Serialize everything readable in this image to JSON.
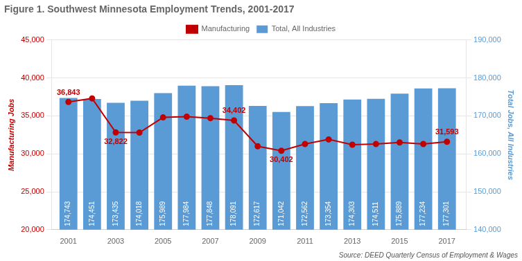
{
  "chart_data": {
    "type": "bar",
    "title": "Figure 1. Southwest Minnesota Employment Trends, 2001-2017",
    "source": "Source: DEED Quarterly Census of Employment & Wages",
    "x": [
      2001,
      2002,
      2003,
      2004,
      2005,
      2006,
      2007,
      2008,
      2009,
      2010,
      2011,
      2012,
      2013,
      2014,
      2015,
      2016,
      2017
    ],
    "xlim": [
      2000.3,
      2017.8
    ],
    "xticks": [
      2001,
      2003,
      2005,
      2007,
      2009,
      2011,
      2013,
      2015,
      2017
    ],
    "y_label": "Manufacturing Jobs",
    "y2_label": "Total Jobs, All Industries",
    "ylim": [
      20000,
      45000
    ],
    "yticks": [
      {
        "value": 20000,
        "label": "20,000"
      },
      {
        "value": 25000,
        "label": "25,000"
      },
      {
        "value": 30000,
        "label": "30,000"
      },
      {
        "value": 35000,
        "label": "35,000"
      },
      {
        "value": 40000,
        "label": "40,000"
      },
      {
        "value": 45000,
        "label": "45,000"
      }
    ],
    "y2lim": [
      140000,
      190000
    ],
    "y2ticks": [
      {
        "value": 140000,
        "label": "140,000"
      },
      {
        "value": 150000,
        "label": "150,000"
      },
      {
        "value": 160000,
        "label": "160,000"
      },
      {
        "value": 170000,
        "label": "170,000"
      },
      {
        "value": 180000,
        "label": "180,000"
      },
      {
        "value": 190000,
        "label": "190,000"
      }
    ],
    "grid": true,
    "legend": "top",
    "series": [
      {
        "name": "Total, All Industries",
        "type": "bar",
        "color": "#5B9BD5",
        "axis": "y2",
        "data_labels": true,
        "values": [
          174743,
          174451,
          173435,
          174018,
          175989,
          177984,
          177848,
          178091,
          172617,
          171042,
          172562,
          173354,
          174303,
          174511,
          175889,
          177234,
          177301
        ],
        "value_labels": [
          "174,743",
          "174,451",
          "173,435",
          "174,018",
          "175,989",
          "177,984",
          "177,848",
          "178,091",
          "172,617",
          "171,042",
          "172,562",
          "173,354",
          "174,303",
          "174,511",
          "175,889",
          "177,234",
          "177,301"
        ]
      },
      {
        "name": "Manufacturing",
        "type": "line",
        "color": "#C00000",
        "axis": "y",
        "marker": "circle",
        "line_style": "solid",
        "values": [
          36843,
          37300,
          32822,
          32800,
          34800,
          34900,
          34700,
          34402,
          31000,
          30402,
          31300,
          31900,
          31200,
          31300,
          31500,
          31300,
          31593
        ]
      }
    ],
    "annotations": [
      {
        "x": 2001,
        "y": 36843,
        "text": "36,843",
        "axis": "y"
      },
      {
        "x": 2003,
        "y": 32822,
        "text": "32,822",
        "axis": "y"
      },
      {
        "x": 2008,
        "y": 34402,
        "text": "34,402",
        "axis": "y"
      },
      {
        "x": 2010,
        "y": 30402,
        "text": "30,402",
        "axis": "y"
      },
      {
        "x": 2017,
        "y": 31593,
        "text": "31,593",
        "axis": "y"
      }
    ]
  }
}
